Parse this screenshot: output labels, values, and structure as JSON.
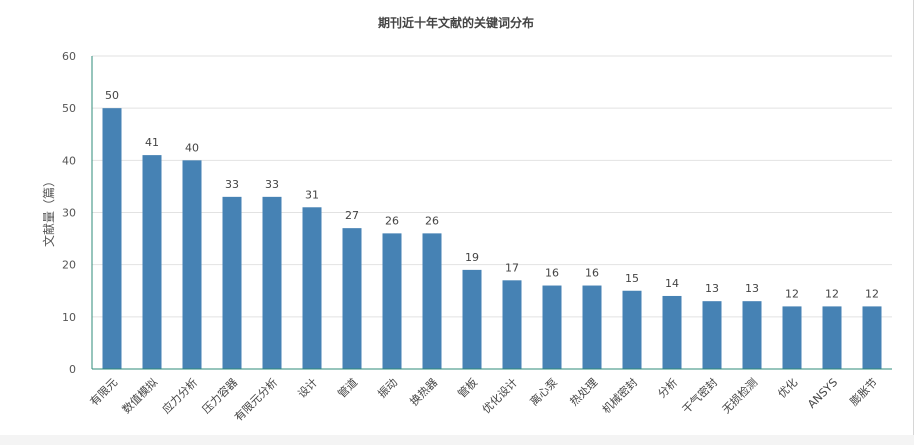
{
  "chart_data": {
    "type": "bar",
    "title": "期刊近十年文献的关键词分布",
    "xlabel": "",
    "ylabel": "文献量（篇）",
    "ylim": [
      0,
      60
    ],
    "yticks": [
      0,
      10,
      20,
      30,
      40,
      50,
      60
    ],
    "grid": true,
    "categories": [
      "有限元",
      "数值模拟",
      "应力分析",
      "压力容器",
      "有限元分析",
      "设计",
      "管道",
      "振动",
      "换热器",
      "管板",
      "优化设计",
      "离心泵",
      "热处理",
      "机械密封",
      "分析",
      "干气密封",
      "无损检测",
      "优化",
      "ANSYS",
      "膨胀节"
    ],
    "values": [
      50,
      41,
      40,
      33,
      33,
      31,
      27,
      26,
      26,
      19,
      17,
      16,
      16,
      15,
      14,
      13,
      13,
      12,
      12,
      12
    ],
    "bar_color": "#4682b4",
    "axis_color": "#2e8b79"
  }
}
